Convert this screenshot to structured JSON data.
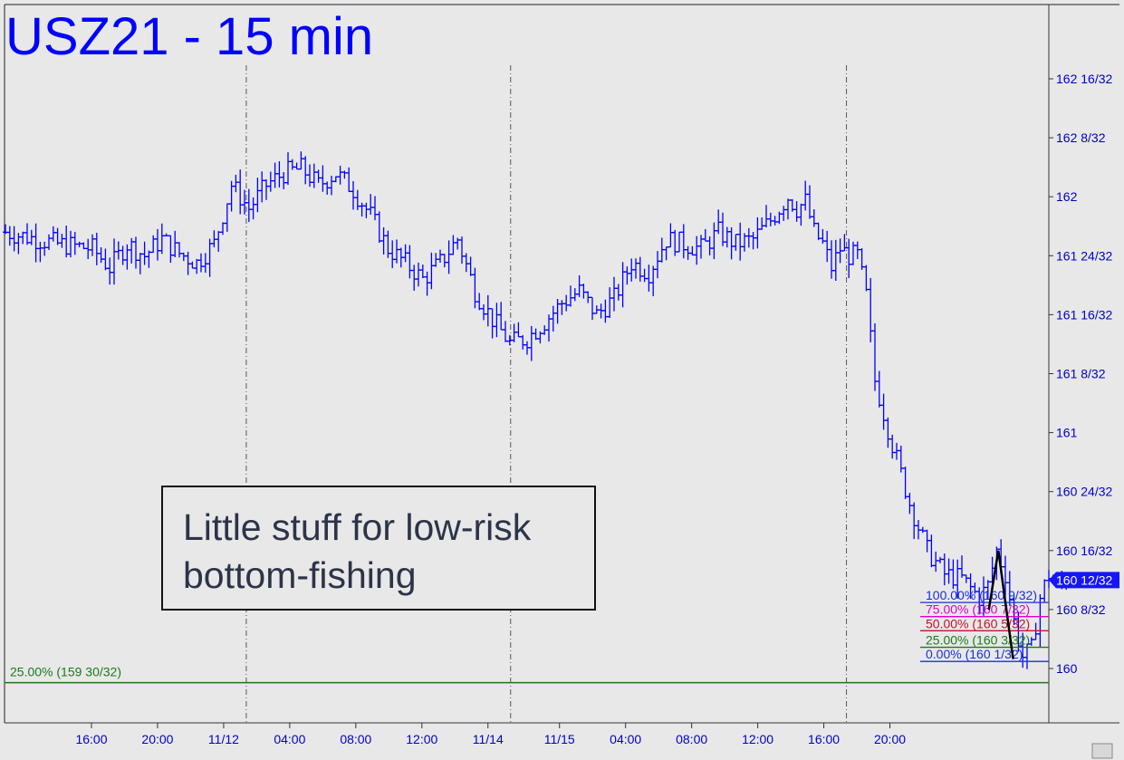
{
  "chart_data": {
    "type": "ohlc-bar",
    "title": "USZ21 - 15 min",
    "y_unit": "32nds",
    "ylim": [
      159.9,
      162.75
    ],
    "y_ticks": [
      {
        "value": 160.0,
        "label": "160"
      },
      {
        "value": 160.25,
        "label": "160 8/32"
      },
      {
        "value": 160.5,
        "label": "160 16/32"
      },
      {
        "value": 160.75,
        "label": "160 24/32"
      },
      {
        "value": 161.0,
        "label": "161"
      },
      {
        "value": 161.25,
        "label": "161 8/32"
      },
      {
        "value": 161.5,
        "label": "161 16/32"
      },
      {
        "value": 161.75,
        "label": "161 24/32"
      },
      {
        "value": 162.0,
        "label": "162"
      },
      {
        "value": 162.25,
        "label": "162 8/32"
      },
      {
        "value": 162.5,
        "label": "162 16/32"
      }
    ],
    "x_ticks": [
      "16:00",
      "20:00",
      "11/12",
      "04:00",
      "08:00",
      "12:00",
      "11/14",
      "11/15",
      "04:00",
      "08:00",
      "12:00",
      "16:00",
      "20:00"
    ],
    "session_dividers": [
      2,
      6,
      11
    ],
    "price_path": [
      [
        0,
        161.85
      ],
      [
        6,
        161.8
      ],
      [
        10,
        161.78
      ],
      [
        12,
        161.7
      ],
      [
        14,
        161.8
      ],
      [
        16,
        161.75
      ],
      [
        18,
        161.82
      ],
      [
        20,
        161.76
      ],
      [
        22,
        161.72
      ],
      [
        24,
        161.8
      ],
      [
        26,
        162.05
      ],
      [
        28,
        161.95
      ],
      [
        30,
        162.05
      ],
      [
        32,
        162.1
      ],
      [
        34,
        162.12
      ],
      [
        36,
        162.05
      ],
      [
        38,
        162.1
      ],
      [
        40,
        162.03
      ],
      [
        42,
        161.92
      ],
      [
        44,
        161.78
      ],
      [
        46,
        161.72
      ],
      [
        48,
        161.65
      ],
      [
        50,
        161.72
      ],
      [
        52,
        161.82
      ],
      [
        54,
        161.6
      ],
      [
        56,
        161.48
      ],
      [
        58,
        161.38
      ],
      [
        60,
        161.4
      ],
      [
        62,
        161.47
      ],
      [
        64,
        161.55
      ],
      [
        66,
        161.6
      ],
      [
        68,
        161.5
      ],
      [
        70,
        161.57
      ],
      [
        72,
        161.72
      ],
      [
        74,
        161.68
      ],
      [
        76,
        161.82
      ],
      [
        78,
        161.8
      ],
      [
        80,
        161.78
      ],
      [
        82,
        161.85
      ],
      [
        84,
        161.8
      ],
      [
        86,
        161.82
      ],
      [
        88,
        161.9
      ],
      [
        90,
        162.0
      ],
      [
        91,
        161.95
      ],
      [
        92,
        161.98
      ],
      [
        93,
        161.85
      ],
      [
        94,
        161.8
      ],
      [
        95,
        161.7
      ],
      [
        96,
        161.78
      ],
      [
        97,
        161.75
      ],
      [
        98,
        161.75
      ],
      [
        99,
        161.58
      ],
      [
        100,
        161.22
      ],
      [
        102,
        160.95
      ],
      [
        104,
        160.7
      ],
      [
        106,
        160.5
      ],
      [
        108,
        160.4
      ],
      [
        110,
        160.38
      ],
      [
        112,
        160.3
      ],
      [
        113,
        160.35
      ],
      [
        114,
        160.5
      ],
      [
        115,
        160.4
      ],
      [
        116,
        160.2
      ],
      [
        117,
        160.05
      ],
      [
        118,
        160.08
      ],
      [
        119,
        160.3
      ],
      [
        120,
        160.4
      ],
      [
        121,
        160.35
      ],
      [
        122,
        160.38
      ]
    ],
    "swing_line": [
      [
        113.2,
        160.25
      ],
      [
        114.3,
        160.5
      ],
      [
        116.0,
        160.04
      ]
    ],
    "last_price": {
      "value": 160.375,
      "label": "160 12/32"
    },
    "fib_levels": [
      {
        "label": "100.00% (160 9/32)",
        "value": 160.28,
        "color": "#1a2fd8"
      },
      {
        "label": "75.00% (160 7/32)",
        "value": 160.22,
        "color": "#e000d0"
      },
      {
        "label": "50.00% (160 5/32)",
        "value": 160.16,
        "color": "#c8102e"
      },
      {
        "label": "25.00% (160 3/32)",
        "value": 160.09,
        "color": "#1a7a1a"
      },
      {
        "label": "0.00% (160 1/32)",
        "value": 160.03,
        "color": "#1a2fd8"
      }
    ],
    "support_line": {
      "label": "25.00% (159 30/32)",
      "value": 159.94,
      "color": "#1a7a1a"
    }
  },
  "annotation": {
    "text": "Little stuff for low-risk\nbottom-fishing"
  },
  "colors": {
    "background": "#e8e8e8",
    "bars": "#0000ff",
    "axis_text": "#0000cc",
    "title": "#0000ff"
  }
}
